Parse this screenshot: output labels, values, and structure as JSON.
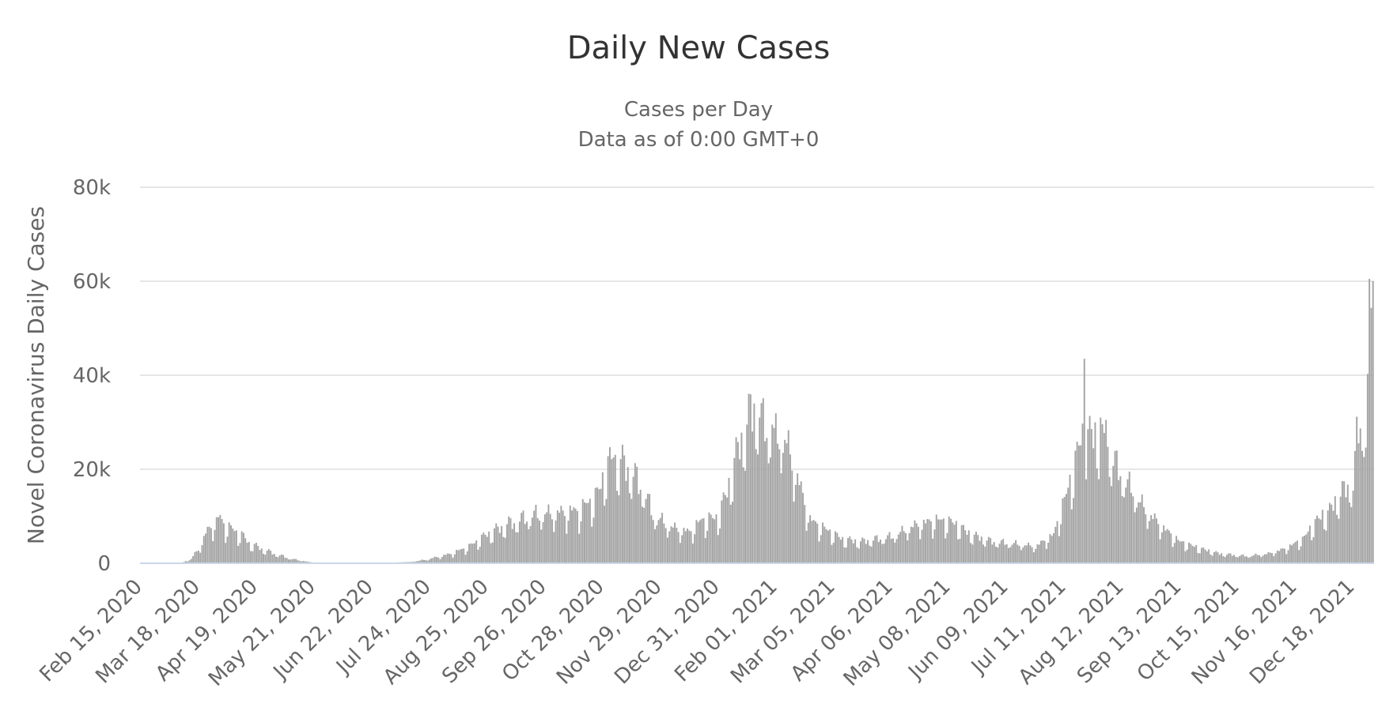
{
  "chart_data": {
    "type": "bar",
    "title": "Daily New Cases",
    "subtitle": "Cases per Day",
    "subtitle2": "Data as of 0:00 GMT+0",
    "xlabel": "",
    "ylabel": "Novel Coronavirus Daily Cases",
    "ylim": [
      0,
      80000
    ],
    "yticks": [
      0,
      20000,
      40000,
      60000,
      80000
    ],
    "ytick_labels": [
      "0",
      "20k",
      "40k",
      "60k",
      "80k"
    ],
    "x_start": "Feb 15, 2020",
    "x_end": "Dec 29, 2021",
    "x_tick_labels": [
      "Feb 15, 2020",
      "Mar 18, 2020",
      "Apr 19, 2020",
      "May 21, 2020",
      "Jun 22, 2020",
      "Jul 24, 2020",
      "Aug 25, 2020",
      "Sep 26, 2020",
      "Oct 28, 2020",
      "Nov 29, 2020",
      "Dec 31, 2020",
      "Feb 01, 2021",
      "Mar 05, 2021",
      "Apr 06, 2021",
      "May 08, 2021",
      "Jun 09, 2021",
      "Jul 11, 2021",
      "Aug 12, 2021",
      "Sep 13, 2021",
      "Oct 15, 2021",
      "Nov 16, 2021",
      "Dec 18, 2021"
    ],
    "grid": true,
    "legend": "none",
    "series": [
      {
        "color": "#a3a3a3",
        "anchors": [
          [
            "Feb 15, 2020",
            0
          ],
          [
            "Mar 08, 2020",
            0
          ],
          [
            "Mar 10, 2020",
            300
          ],
          [
            "Mar 14, 2020",
            900
          ],
          [
            "Mar 18, 2020",
            3000
          ],
          [
            "Mar 22, 2020",
            6000
          ],
          [
            "Mar 26, 2020",
            8500
          ],
          [
            "Mar 30, 2020",
            9300
          ],
          [
            "Apr 03, 2020",
            7500
          ],
          [
            "Apr 10, 2020",
            6200
          ],
          [
            "Apr 15, 2020",
            4200
          ],
          [
            "Apr 22, 2020",
            3000
          ],
          [
            "Apr 29, 2020",
            2000
          ],
          [
            "May 06, 2020",
            1200
          ],
          [
            "May 10, 2020",
            800
          ],
          [
            "May 18, 2020",
            300
          ],
          [
            "May 22, 2020",
            100
          ],
          [
            "Jun 30, 2020",
            100
          ],
          [
            "Jul 15, 2020",
            300
          ],
          [
            "Jul 24, 2020",
            900
          ],
          [
            "Aug 05, 2020",
            2000
          ],
          [
            "Aug 15, 2020",
            3500
          ],
          [
            "Aug 25, 2020",
            6000
          ],
          [
            "Sep 05, 2020",
            8000
          ],
          [
            "Sep 20, 2020",
            10000
          ],
          [
            "Oct 05, 2020",
            10500
          ],
          [
            "Oct 15, 2020",
            11000
          ],
          [
            "Oct 25, 2020",
            14000
          ],
          [
            "Oct 30, 2020",
            20000
          ],
          [
            "Nov 05, 2020",
            21500
          ],
          [
            "Nov 12, 2020",
            19500
          ],
          [
            "Nov 20, 2020",
            15000
          ],
          [
            "Nov 25, 2020",
            10000
          ],
          [
            "Dec 05, 2020",
            7500
          ],
          [
            "Dec 15, 2020",
            6500
          ],
          [
            "Dec 22, 2020",
            9000
          ],
          [
            "Dec 31, 2020",
            9500
          ],
          [
            "Jan 05, 2021",
            15000
          ],
          [
            "Jan 12, 2021",
            25000
          ],
          [
            "Jan 19, 2021",
            32000
          ],
          [
            "Jan 25, 2021",
            29000
          ],
          [
            "Feb 01, 2021",
            26000
          ],
          [
            "Feb 05, 2021",
            27000
          ],
          [
            "Feb 12, 2021",
            19000
          ],
          [
            "Feb 20, 2021",
            9000
          ],
          [
            "Mar 01, 2021",
            7000
          ],
          [
            "Mar 10, 2021",
            5000
          ],
          [
            "Mar 20, 2021",
            4500
          ],
          [
            "Apr 06, 2021",
            5500
          ],
          [
            "Apr 20, 2021",
            8000
          ],
          [
            "May 01, 2021",
            9000
          ],
          [
            "May 10, 2021",
            8500
          ],
          [
            "May 20, 2021",
            6000
          ],
          [
            "Jun 01, 2021",
            4500
          ],
          [
            "Jun 15, 2021",
            4000
          ],
          [
            "Jun 25, 2021",
            3500
          ],
          [
            "Jul 05, 2021",
            6000
          ],
          [
            "Jul 10, 2021",
            12000
          ],
          [
            "Jul 15, 2021",
            18000
          ],
          [
            "Jul 20, 2021",
            26000
          ],
          [
            "Jul 28, 2021",
            27000
          ],
          [
            "Aug 05, 2021",
            23000
          ],
          [
            "Aug 12, 2021",
            18000
          ],
          [
            "Aug 18, 2021",
            15000
          ],
          [
            "Aug 25, 2021",
            11000
          ],
          [
            "Sep 05, 2021",
            7000
          ],
          [
            "Sep 13, 2021",
            4500
          ],
          [
            "Sep 25, 2021",
            3000
          ],
          [
            "Oct 05, 2021",
            2000
          ],
          [
            "Oct 20, 2021",
            1500
          ],
          [
            "Nov 01, 2021",
            2000
          ],
          [
            "Nov 10, 2021",
            3000
          ],
          [
            "Nov 20, 2021",
            5000
          ],
          [
            "Nov 28, 2021",
            9000
          ],
          [
            "Dec 05, 2021",
            11000
          ],
          [
            "Dec 12, 2021",
            15000
          ],
          [
            "Dec 18, 2021",
            16500
          ],
          [
            "Dec 20, 2021",
            26000
          ],
          [
            "Dec 23, 2021",
            30000
          ],
          [
            "Dec 25, 2021",
            26500
          ],
          [
            "Dec 27, 2021",
            49500
          ],
          [
            "Dec 29, 2021",
            60000
          ]
        ],
        "spikes": [
          [
            "Jul 22, 2021",
            43500
          ],
          [
            "Jul 31, 2021",
            31000
          ],
          [
            "Aug 03, 2021",
            30500
          ],
          [
            "Jan 20, 2021",
            34000
          ],
          [
            "Jan 23, 2021",
            31000
          ],
          [
            "Jan 30, 2021",
            29500
          ],
          [
            "Nov 03, 2020",
            22500
          ],
          [
            "Mar 28, 2020",
            9800
          ]
        ]
      }
    ]
  }
}
